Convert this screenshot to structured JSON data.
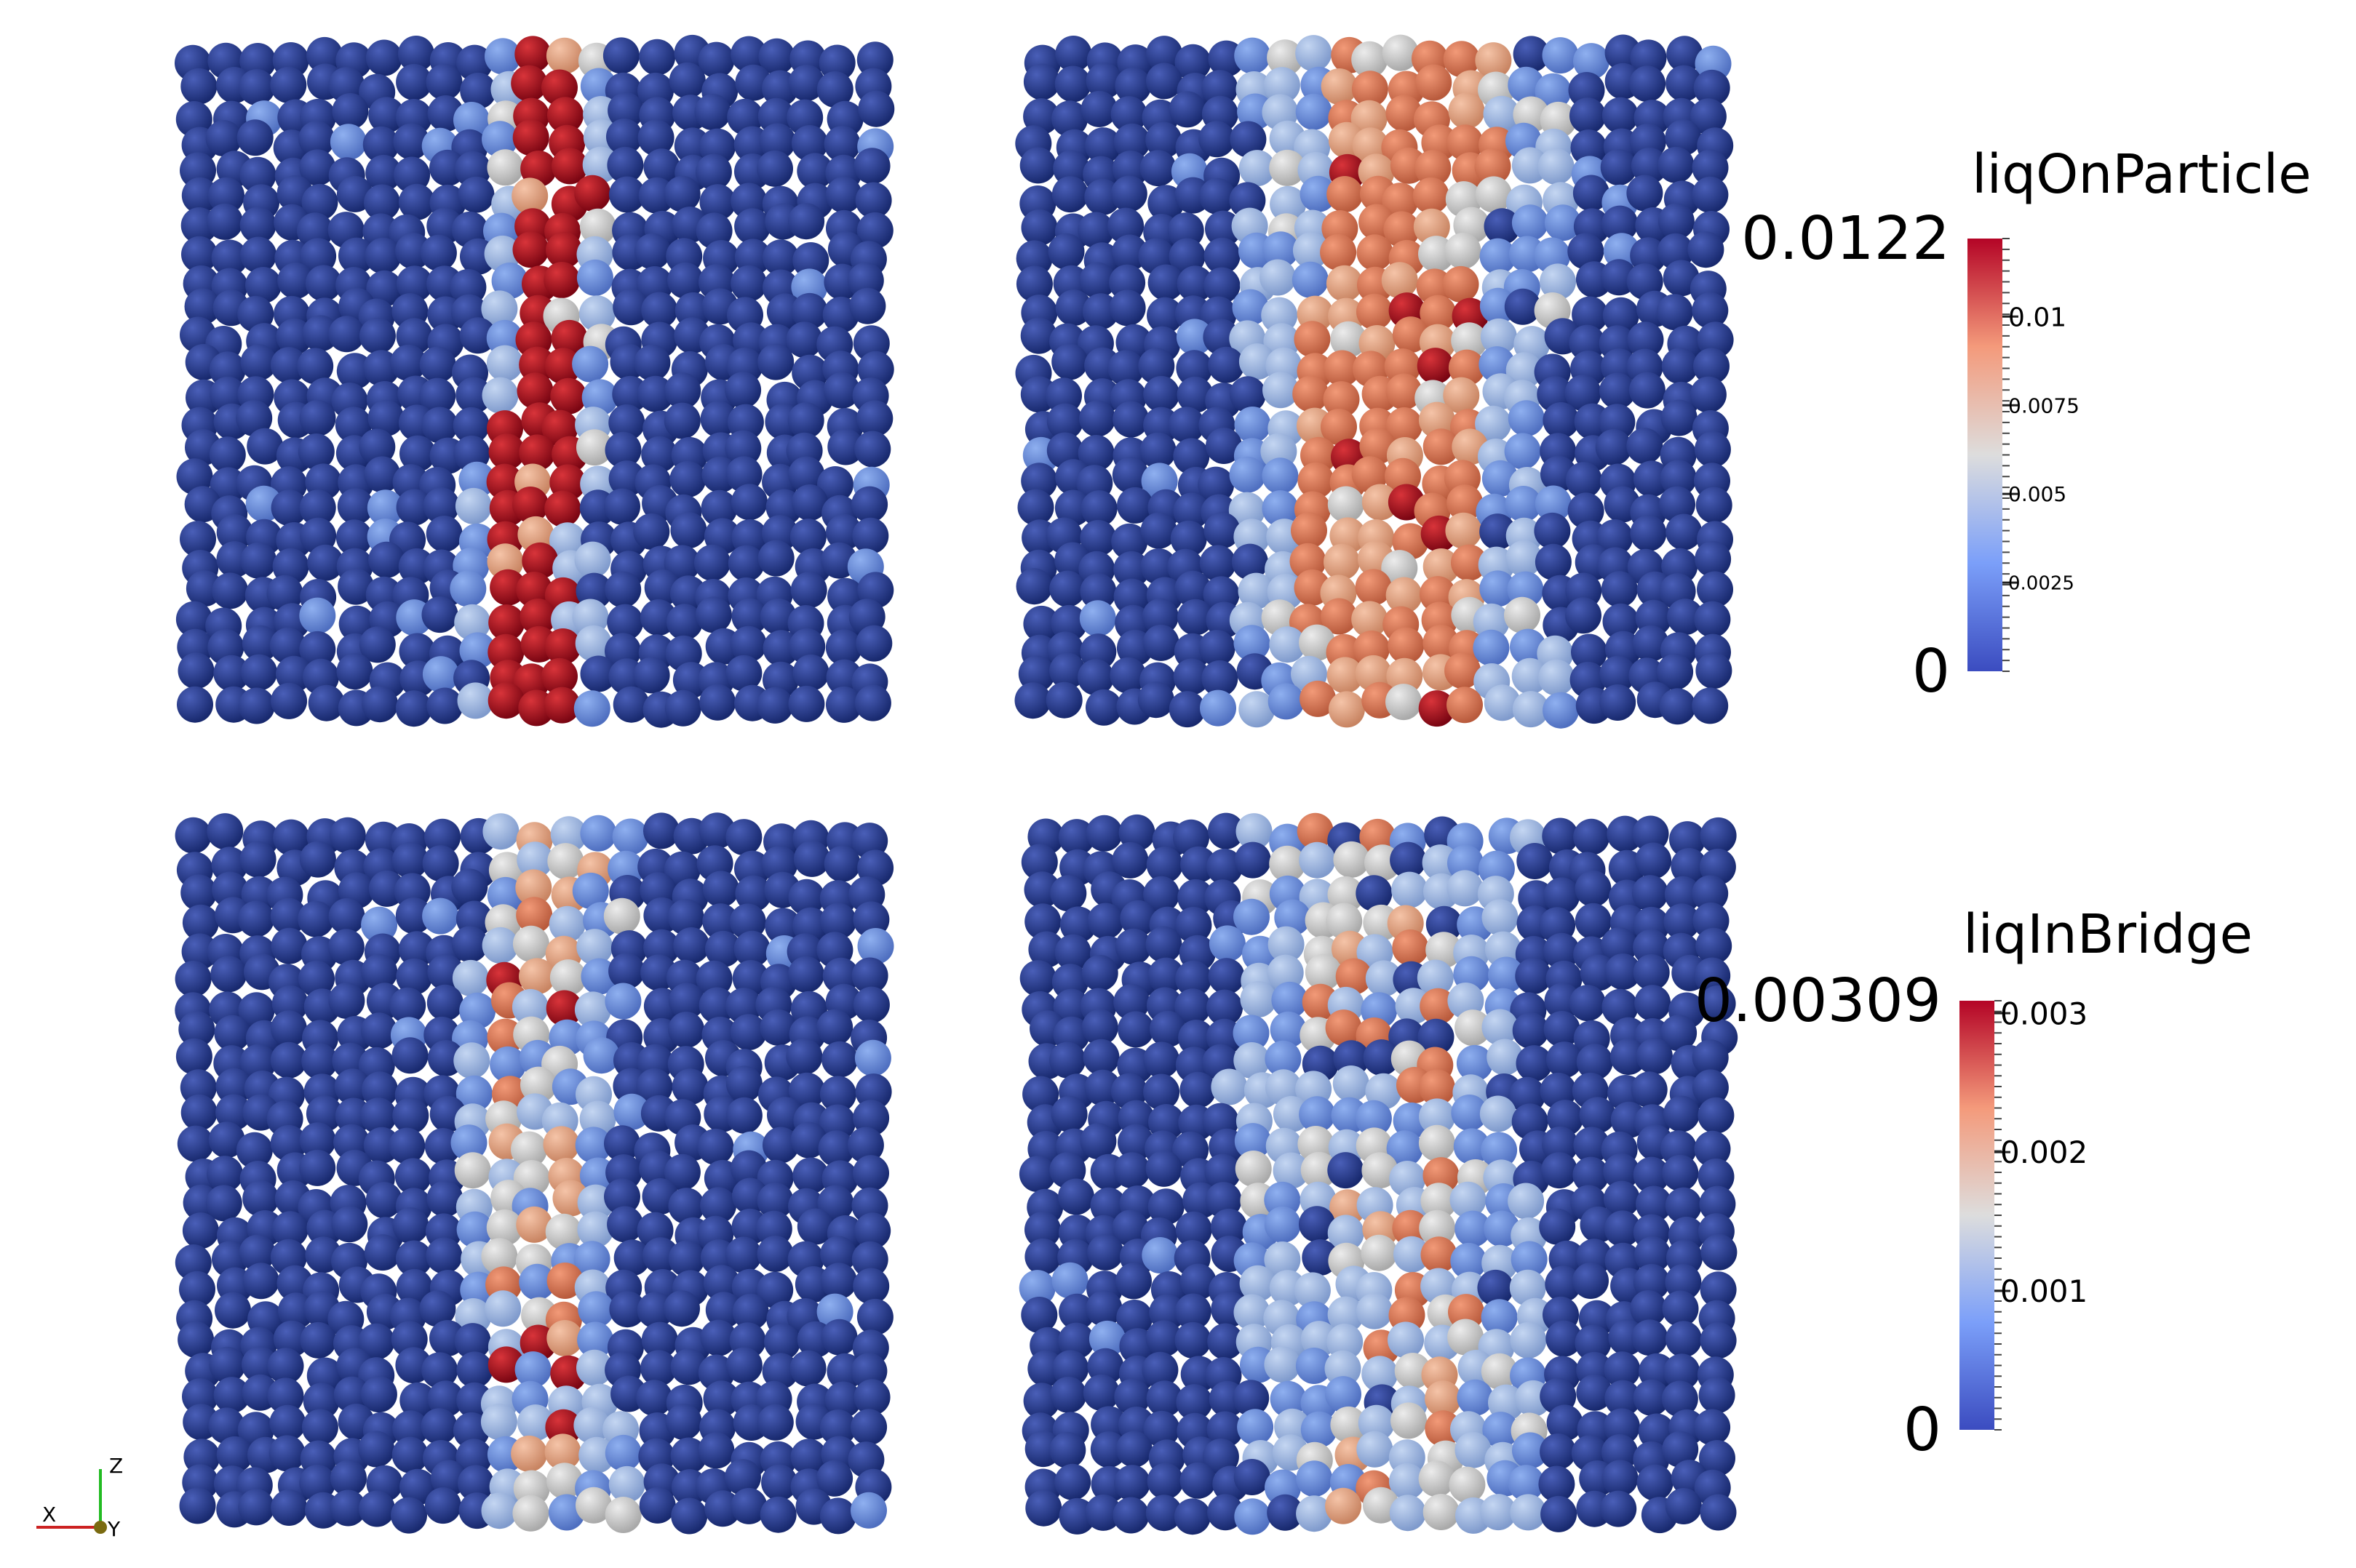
{
  "colorbars": [
    {
      "title": "liqOnParticle",
      "max": 0.0122,
      "min": 0,
      "ticks": [
        0.01,
        0.0075,
        0.005,
        0.0025
      ]
    },
    {
      "title": "liqInBridge",
      "max": 0.00309,
      "min": 0,
      "ticks": [
        0.003,
        0.002,
        0.001
      ]
    }
  ],
  "axes_triad": {
    "x": "X",
    "y": "Y",
    "z": "Z"
  }
}
